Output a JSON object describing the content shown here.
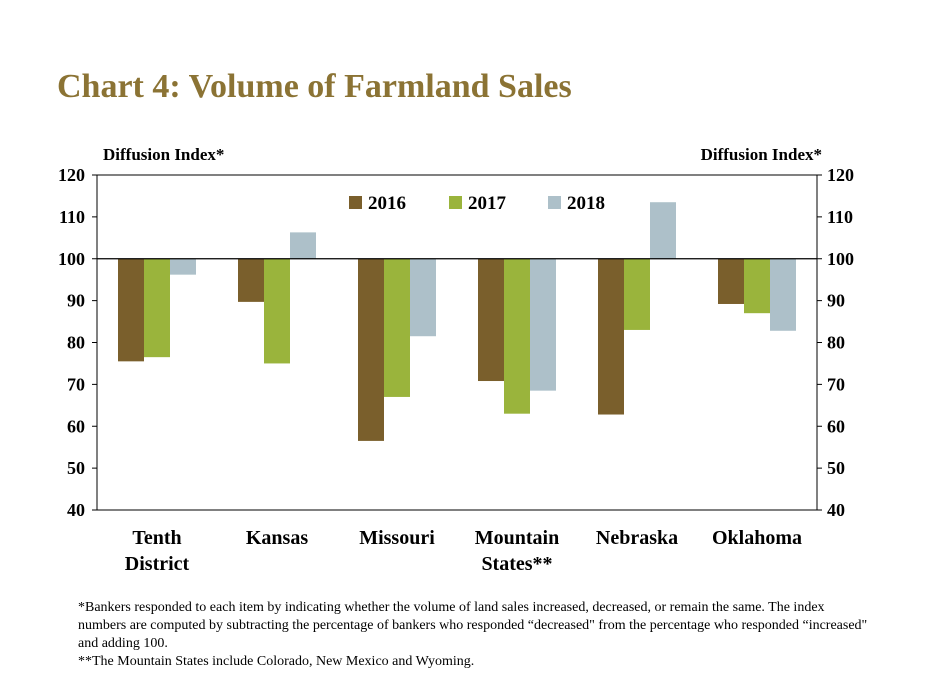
{
  "title": "Chart 4: Volume of Farmland Sales",
  "footnotes": {
    "note1": "*Bankers responded to each item by indicating whether the volume of land sales increased, decreased, or remain the same. The index numbers are computed by subtracting the percentage of bankers who responded “decreased\" from the percentage who responded “increased\" and adding 100.",
    "note2": "**The Mountain States include Colorado, New Mexico and Wyoming."
  },
  "colors": {
    "s2016": "#7a5f2c",
    "s2017": "#9ab43c",
    "s2018": "#adc0c9",
    "title": "#8b7334"
  },
  "chart_data": {
    "type": "bar",
    "title": "Chart 4: Volume of Farmland Sales",
    "ylabel": "Diffusion Index*",
    "ylabel_right": "Diffusion Index*",
    "xlabel": "",
    "ylim": [
      40,
      120
    ],
    "yticks": [
      40,
      50,
      60,
      70,
      80,
      90,
      100,
      110,
      120
    ],
    "baseline": 100,
    "categories": [
      "Tenth District",
      "Kansas",
      "Missouri",
      "Mountain States**",
      "Nebraska",
      "Oklahoma"
    ],
    "category_lines": [
      [
        "Tenth",
        "District"
      ],
      [
        "Kansas"
      ],
      [
        "Missouri"
      ],
      [
        "Mountain",
        "States**"
      ],
      [
        "Nebraska"
      ],
      [
        "Oklahoma"
      ]
    ],
    "series": [
      {
        "name": "2016",
        "color": "#7a5f2c",
        "values": [
          75.5,
          89.7,
          56.5,
          70.8,
          62.8,
          89.2
        ]
      },
      {
        "name": "2017",
        "color": "#9ab43c",
        "values": [
          76.5,
          75.0,
          67.0,
          63.0,
          83.0,
          87.0
        ]
      },
      {
        "name": "2018",
        "color": "#adc0c9",
        "values": [
          96.2,
          106.3,
          81.5,
          68.5,
          113.5,
          82.8
        ]
      }
    ],
    "legend": "top-center",
    "grid": false
  }
}
